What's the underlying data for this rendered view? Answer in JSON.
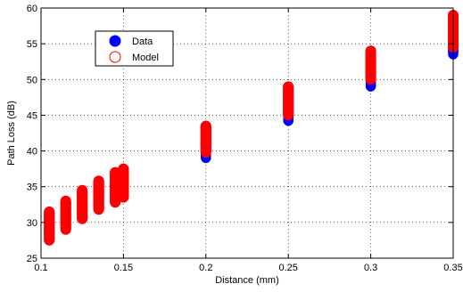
{
  "chart_data": {
    "type": "scatter",
    "title": "",
    "xlabel": "Distance (mm)",
    "ylabel": "Path Loss (dB)",
    "xlim": [
      0.1,
      0.35
    ],
    "ylim": [
      25,
      60
    ],
    "xticks": [
      0.1,
      0.15,
      0.2,
      0.25,
      0.3,
      0.35
    ],
    "yticks": [
      25,
      30,
      35,
      40,
      45,
      50,
      55,
      60
    ],
    "xtick_labels": [
      "0.1",
      "0.15",
      "0.2",
      "0.25",
      "0.3",
      "0.35"
    ],
    "ytick_labels": [
      "25",
      "30",
      "35",
      "40",
      "45",
      "50",
      "55",
      "60"
    ],
    "grid": true,
    "grid_style": "dotted",
    "legend": "top-left",
    "series": [
      {
        "name": "Data",
        "marker": "filled-circle",
        "color": "#0000ff",
        "points": [
          {
            "x": 0.105,
            "y_min": 27.5,
            "y_max": 31.5
          },
          {
            "x": 0.115,
            "y_min": 29.0,
            "y_max": 33.0
          },
          {
            "x": 0.125,
            "y_min": 30.5,
            "y_max": 34.5
          },
          {
            "x": 0.135,
            "y_min": 31.8,
            "y_max": 35.8
          },
          {
            "x": 0.145,
            "y_min": 32.8,
            "y_max": 37.0
          },
          {
            "x": 0.15,
            "y_min": 33.5,
            "y_max": 37.5
          },
          {
            "x": 0.2,
            "y_min": 39.0,
            "y_max": 43.5
          },
          {
            "x": 0.25,
            "y_min": 44.2,
            "y_max": 49.0
          },
          {
            "x": 0.3,
            "y_min": 49.0,
            "y_max": 54.0
          },
          {
            "x": 0.35,
            "y_min": 53.5,
            "y_max": 59.0
          }
        ]
      },
      {
        "name": "Model",
        "marker": "open-circle",
        "color": "#ff0000",
        "points": [
          {
            "x": 0.105,
            "y_min": 27.5,
            "y_max": 31.5
          },
          {
            "x": 0.115,
            "y_min": 29.0,
            "y_max": 33.0
          },
          {
            "x": 0.125,
            "y_min": 30.5,
            "y_max": 34.5
          },
          {
            "x": 0.135,
            "y_min": 31.8,
            "y_max": 35.8
          },
          {
            "x": 0.145,
            "y_min": 32.8,
            "y_max": 37.0
          },
          {
            "x": 0.15,
            "y_min": 33.5,
            "y_max": 37.5
          },
          {
            "x": 0.2,
            "y_min": 39.8,
            "y_max": 43.5
          },
          {
            "x": 0.25,
            "y_min": 45.0,
            "y_max": 49.0
          },
          {
            "x": 0.3,
            "y_min": 50.0,
            "y_max": 54.0
          },
          {
            "x": 0.35,
            "y_min": 54.5,
            "y_max": 59.0
          }
        ]
      }
    ]
  }
}
